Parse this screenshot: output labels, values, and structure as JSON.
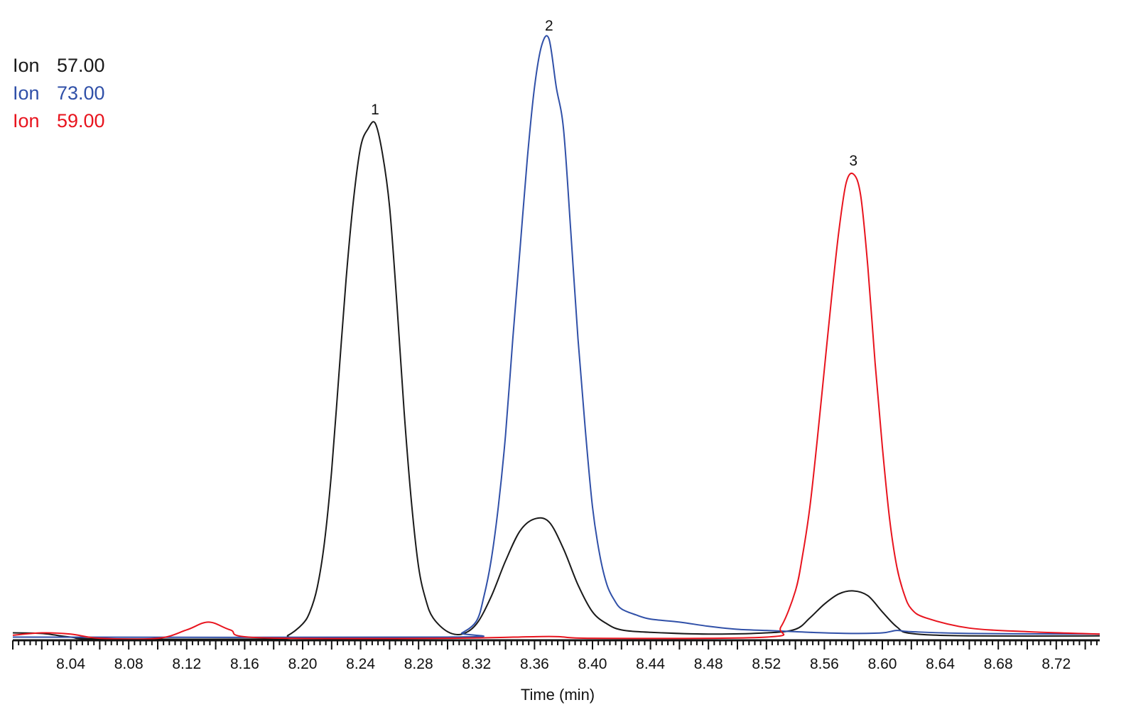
{
  "chart_data": {
    "type": "line",
    "title": "",
    "xlabel": "Time (min)",
    "ylabel": "",
    "xlim": [
      8.0,
      8.75
    ],
    "ylim": [
      0,
      100
    ],
    "grid": false,
    "legend_placement": "top-left",
    "x_tick_labels": [
      "8.04",
      "8.08",
      "8.12",
      "8.16",
      "8.20",
      "8.24",
      "8.28",
      "8.32",
      "8.36",
      "8.40",
      "8.44",
      "8.48",
      "8.52",
      "8.56",
      "8.60",
      "8.64",
      "8.68",
      "8.72"
    ],
    "legend": [
      {
        "prefix": "Ion",
        "value": "57.00",
        "color": "#1a1a1a"
      },
      {
        "prefix": "Ion",
        "value": "73.00",
        "color": "#3050a8"
      },
      {
        "prefix": "Ion",
        "value": "59.00",
        "color": "#e8141e"
      }
    ],
    "peak_labels": [
      {
        "label": "1",
        "x": 8.25,
        "y": 86
      },
      {
        "label": "2",
        "x": 8.37,
        "y": 100
      },
      {
        "label": "3",
        "x": 8.58,
        "y": 77.5
      }
    ],
    "series": [
      {
        "name": "Ion 57.00",
        "color": "#1a1a1a",
        "points": [
          [
            8.0,
            1.0
          ],
          [
            8.02,
            0.9
          ],
          [
            8.04,
            0.3
          ],
          [
            8.06,
            0
          ],
          [
            8.18,
            0
          ],
          [
            8.19,
            0.6
          ],
          [
            8.2,
            2.5
          ],
          [
            8.205,
            4.5
          ],
          [
            8.21,
            8.5
          ],
          [
            8.215,
            16
          ],
          [
            8.22,
            28
          ],
          [
            8.225,
            44
          ],
          [
            8.23,
            60
          ],
          [
            8.235,
            73
          ],
          [
            8.24,
            82
          ],
          [
            8.245,
            85
          ],
          [
            8.25,
            86
          ],
          [
            8.255,
            81
          ],
          [
            8.26,
            72
          ],
          [
            8.265,
            56
          ],
          [
            8.27,
            38
          ],
          [
            8.275,
            23
          ],
          [
            8.28,
            12
          ],
          [
            8.285,
            6.5
          ],
          [
            8.29,
            3.5
          ],
          [
            8.3,
            1.2
          ],
          [
            8.31,
            0.8
          ],
          [
            8.32,
            2.5
          ],
          [
            8.33,
            7
          ],
          [
            8.34,
            13
          ],
          [
            8.35,
            18
          ],
          [
            8.36,
            20
          ],
          [
            8.37,
            19.5
          ],
          [
            8.38,
            15
          ],
          [
            8.39,
            9
          ],
          [
            8.4,
            4.5
          ],
          [
            8.41,
            2.5
          ],
          [
            8.42,
            1.5
          ],
          [
            8.44,
            1.1
          ],
          [
            8.48,
            0.8
          ],
          [
            8.52,
            1.0
          ],
          [
            8.54,
            1.6
          ],
          [
            8.55,
            3.5
          ],
          [
            8.56,
            5.8
          ],
          [
            8.57,
            7.5
          ],
          [
            8.58,
            8.0
          ],
          [
            8.59,
            7.2
          ],
          [
            8.6,
            4.5
          ],
          [
            8.61,
            2.0
          ],
          [
            8.62,
            0.9
          ],
          [
            8.66,
            0.5
          ],
          [
            8.75,
            0.5
          ]
        ]
      },
      {
        "name": "Ion 73.00",
        "color": "#3050a8",
        "points": [
          [
            8.0,
            0.3
          ],
          [
            8.3,
            0.3
          ],
          [
            8.31,
            1.0
          ],
          [
            8.32,
            3
          ],
          [
            8.325,
            7
          ],
          [
            8.33,
            13
          ],
          [
            8.335,
            22
          ],
          [
            8.34,
            34
          ],
          [
            8.345,
            50
          ],
          [
            8.35,
            65
          ],
          [
            8.355,
            80
          ],
          [
            8.36,
            92
          ],
          [
            8.365,
            99
          ],
          [
            8.37,
            100
          ],
          [
            8.375,
            92
          ],
          [
            8.38,
            85
          ],
          [
            8.385,
            68
          ],
          [
            8.39,
            50
          ],
          [
            8.395,
            35
          ],
          [
            8.4,
            22
          ],
          [
            8.405,
            14
          ],
          [
            8.41,
            9
          ],
          [
            8.415,
            6.5
          ],
          [
            8.42,
            5
          ],
          [
            8.43,
            4
          ],
          [
            8.44,
            3.3
          ],
          [
            8.46,
            2.8
          ],
          [
            8.48,
            2.1
          ],
          [
            8.5,
            1.6
          ],
          [
            8.52,
            1.4
          ],
          [
            8.54,
            1.2
          ],
          [
            8.56,
            1.0
          ],
          [
            8.58,
            0.9
          ],
          [
            8.6,
            1.0
          ],
          [
            8.61,
            1.4
          ],
          [
            8.62,
            1.2
          ],
          [
            8.66,
            0.9
          ],
          [
            8.75,
            0.8
          ]
        ]
      },
      {
        "name": "Ion 59.00",
        "color": "#e8141e",
        "points": [
          [
            8.0,
            0.6
          ],
          [
            8.02,
            1.0
          ],
          [
            8.04,
            0.8
          ],
          [
            8.06,
            0.1
          ],
          [
            8.1,
            0.1
          ],
          [
            8.12,
            1.5
          ],
          [
            8.135,
            2.8
          ],
          [
            8.15,
            1.5
          ],
          [
            8.17,
            0.2
          ],
          [
            8.3,
            0.1
          ],
          [
            8.37,
            0.4
          ],
          [
            8.4,
            0.1
          ],
          [
            8.52,
            0.3
          ],
          [
            8.53,
            2
          ],
          [
            8.54,
            8
          ],
          [
            8.545,
            14
          ],
          [
            8.55,
            22
          ],
          [
            8.555,
            33
          ],
          [
            8.56,
            45
          ],
          [
            8.565,
            57
          ],
          [
            8.57,
            68
          ],
          [
            8.575,
            76
          ],
          [
            8.58,
            77.5
          ],
          [
            8.585,
            74
          ],
          [
            8.59,
            62
          ],
          [
            8.595,
            46
          ],
          [
            8.6,
            32
          ],
          [
            8.605,
            20
          ],
          [
            8.61,
            12
          ],
          [
            8.615,
            7.5
          ],
          [
            8.62,
            5
          ],
          [
            8.63,
            3.5
          ],
          [
            8.66,
            1.8
          ],
          [
            8.7,
            1.2
          ],
          [
            8.75,
            0.8
          ]
        ]
      }
    ]
  }
}
